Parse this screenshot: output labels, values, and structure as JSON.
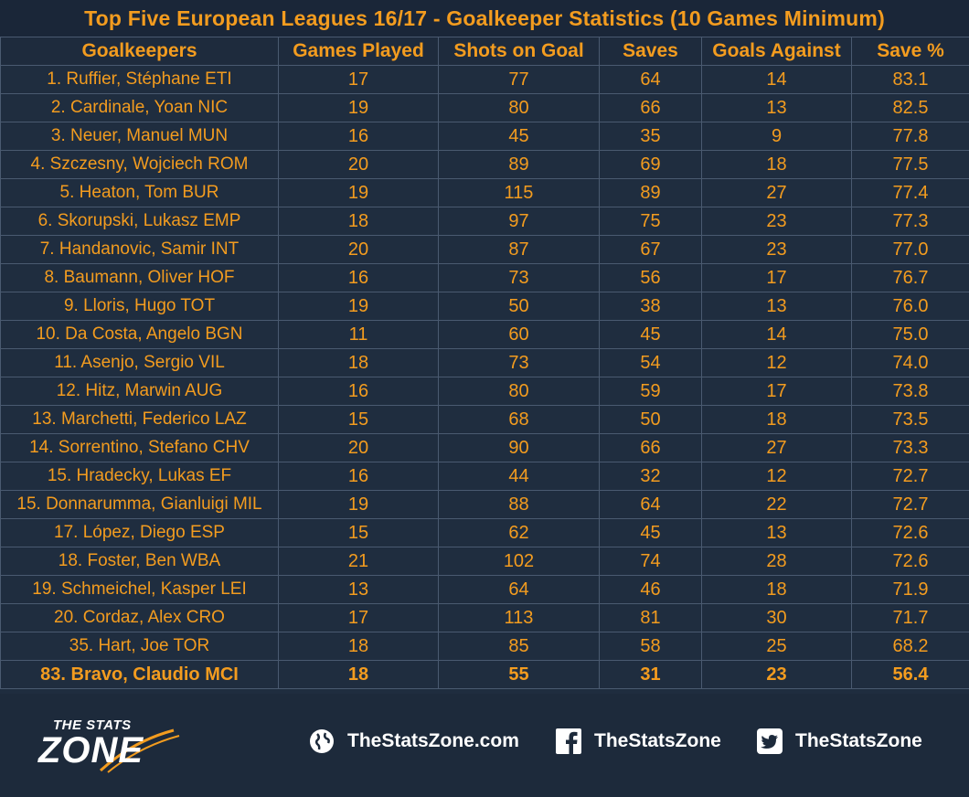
{
  "chart_data": {
    "type": "table",
    "title": "Top Five European Leagues 16/17 - Goalkeeper Statistics (10 Games Minimum)",
    "columns": [
      "Goalkeepers",
      "Games Played",
      "Shots on Goal",
      "Saves",
      "Goals Against",
      "Save %"
    ],
    "rows": [
      [
        "1. Ruffier, Stéphane ETI",
        "17",
        "77",
        "64",
        "14",
        "83.1"
      ],
      [
        "2. Cardinale, Yoan NIC",
        "19",
        "80",
        "66",
        "13",
        "82.5"
      ],
      [
        "3. Neuer, Manuel MUN",
        "16",
        "45",
        "35",
        "9",
        "77.8"
      ],
      [
        "4. Szczesny, Wojciech ROM",
        "20",
        "89",
        "69",
        "18",
        "77.5"
      ],
      [
        "5. Heaton, Tom BUR",
        "19",
        "115",
        "89",
        "27",
        "77.4"
      ],
      [
        "6. Skorupski, Lukasz EMP",
        "18",
        "97",
        "75",
        "23",
        "77.3"
      ],
      [
        "7. Handanovic, Samir INT",
        "20",
        "87",
        "67",
        "23",
        "77.0"
      ],
      [
        "8. Baumann, Oliver HOF",
        "16",
        "73",
        "56",
        "17",
        "76.7"
      ],
      [
        "9. Lloris, Hugo TOT",
        "19",
        "50",
        "38",
        "13",
        "76.0"
      ],
      [
        "10. Da Costa, Angelo BGN",
        "11",
        "60",
        "45",
        "14",
        "75.0"
      ],
      [
        "11. Asenjo, Sergio VIL",
        "18",
        "73",
        "54",
        "12",
        "74.0"
      ],
      [
        "12. Hitz, Marwin AUG",
        "16",
        "80",
        "59",
        "17",
        "73.8"
      ],
      [
        "13. Marchetti, Federico LAZ",
        "15",
        "68",
        "50",
        "18",
        "73.5"
      ],
      [
        "14. Sorrentino, Stefano CHV",
        "20",
        "90",
        "66",
        "27",
        "73.3"
      ],
      [
        "15. Hradecky, Lukas EF",
        "16",
        "44",
        "32",
        "12",
        "72.7"
      ],
      [
        "15. Donnarumma, Gianluigi MIL",
        "19",
        "88",
        "64",
        "22",
        "72.7"
      ],
      [
        "17. López, Diego ESP",
        "15",
        "62",
        "45",
        "13",
        "72.6"
      ],
      [
        "18. Foster, Ben WBA",
        "21",
        "102",
        "74",
        "28",
        "72.6"
      ],
      [
        "19. Schmeichel, Kasper LEI",
        "13",
        "64",
        "46",
        "18",
        "71.9"
      ],
      [
        "20. Cordaz, Alex CRO",
        "17",
        "113",
        "81",
        "30",
        "71.7"
      ],
      [
        "35. Hart, Joe TOR",
        "18",
        "85",
        "58",
        "25",
        "68.2"
      ],
      [
        "83. Bravo, Claudio MCI",
        "18",
        "55",
        "31",
        "23",
        "56.4"
      ]
    ],
    "highlight_row": 21,
    "colors": {
      "background": "#1f2d3f",
      "text": "#f39c1f",
      "grid": "#4a5a70"
    }
  },
  "footer": {
    "logo_top": "THE STATS",
    "logo_bottom": "ZONE",
    "website": "TheStatsZone.com",
    "facebook": "TheStatsZone",
    "twitter": "TheStatsZone",
    "icons": [
      "globe-icon",
      "facebook-icon",
      "twitter-icon"
    ]
  }
}
